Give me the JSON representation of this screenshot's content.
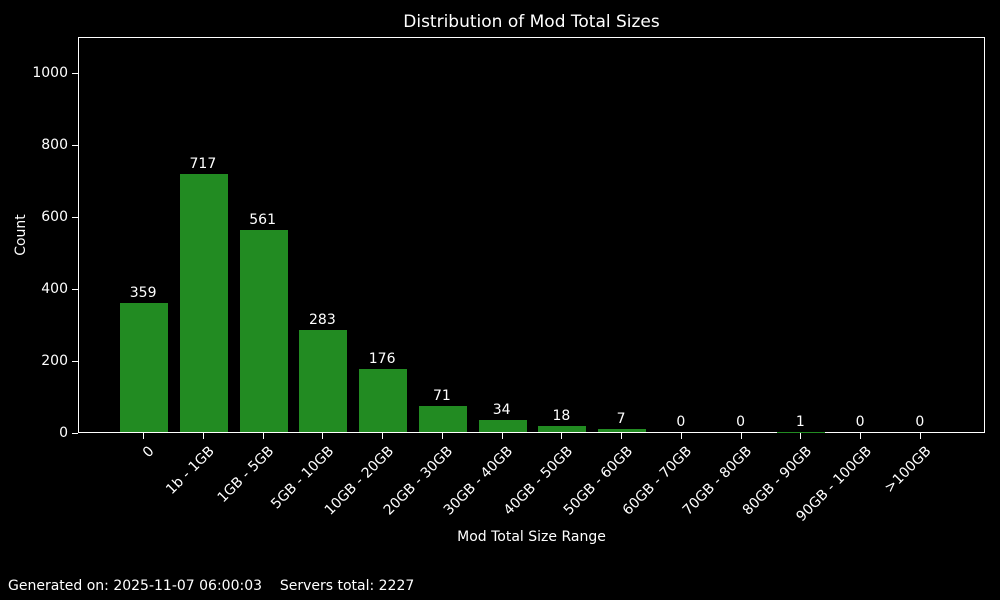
{
  "title": "Distribution of Mod Total Sizes",
  "footer": "Generated on: 2025-11-07 06:00:03    Servers total: 2227",
  "colors": {
    "background": "#000000",
    "bar": "#228B22",
    "text": "#ffffff",
    "axis": "#ffffff"
  },
  "chart_data": {
    "type": "bar",
    "title": "Distribution of Mod Total Sizes",
    "xlabel": "Mod Total Size Range",
    "ylabel": "Count",
    "categories": [
      "0",
      "1b - 1GB",
      "1GB - 5GB",
      "5GB - 10GB",
      "10GB - 20GB",
      "20GB - 30GB",
      "30GB - 40GB",
      "40GB - 50GB",
      "50GB - 60GB",
      "60GB - 70GB",
      "70GB - 80GB",
      "80GB - 90GB",
      "90GB - 100GB",
      ">100GB"
    ],
    "values": [
      359,
      717,
      561,
      283,
      176,
      71,
      34,
      18,
      7,
      0,
      0,
      1,
      0,
      0
    ],
    "bar_labels": [
      359,
      717,
      561,
      283,
      176,
      71,
      34,
      18,
      7,
      0,
      0,
      1,
      0,
      0
    ],
    "yticks": [
      0,
      200,
      400,
      600,
      800,
      1000
    ],
    "ylim": [
      0,
      1100
    ],
    "grid": false,
    "legend": "none",
    "bar_color": "#228B22",
    "background": "#000000",
    "xtick_rotation": 45
  }
}
